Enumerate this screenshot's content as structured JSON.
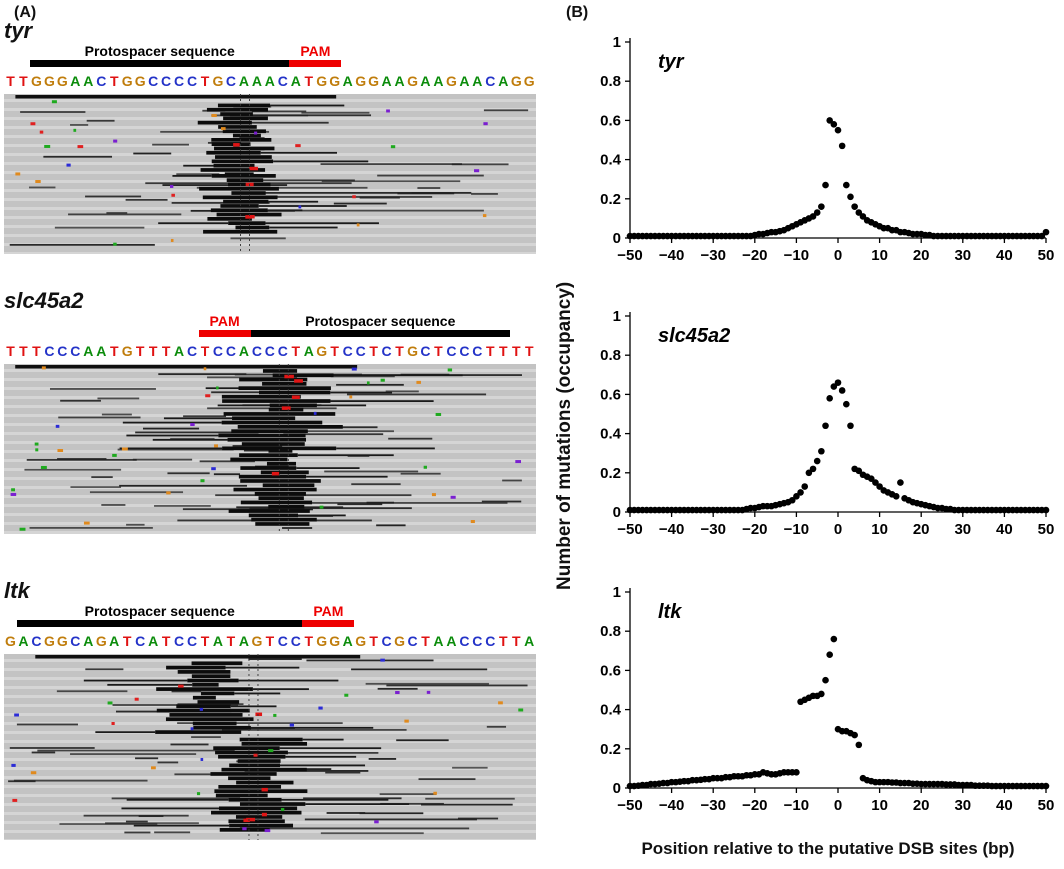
{
  "panelA": {
    "label": "(A)"
  },
  "panelB": {
    "label": "(B)",
    "ylabel": "Number of mutations (occupancy)",
    "xlabel": "Position relative to the putative DSB sites (bp)"
  },
  "base_colors": {
    "A": "#0b8c0b",
    "C": "#2433c8",
    "G": "#c07d0c",
    "T": "#e01212"
  },
  "pam_color": "#ee0000",
  "protospacer_bar_color": "#000000",
  "alignments": [
    {
      "gene": "tyr",
      "protospacer_label": "Protospacer sequence",
      "pam_label": "PAM",
      "sequence": "TTGGGAACTGGCCCCTGCAAACATGGAGGAAGAAGAACAGG",
      "protospacer_span": [
        2,
        21
      ],
      "pam_span": [
        22,
        25
      ],
      "pam_side": "right"
    },
    {
      "gene": "slc45a2",
      "protospacer_label": "Protospacer sequence",
      "pam_label": "PAM",
      "sequence": "TTTCCCAATGTTTACTCCACCCTAGTCCTCTGCTCCCTTTT",
      "pam_span": [
        15,
        18
      ],
      "protospacer_span": [
        19,
        38
      ],
      "pam_side": "left"
    },
    {
      "gene": "ltk",
      "protospacer_label": "Protospacer sequence",
      "pam_label": "PAM",
      "sequence": "GACGGCAGATCATCCTATAGTCCTGGAGTCGCTAACCCTTA",
      "protospacer_span": [
        1,
        22
      ],
      "pam_span": [
        23,
        26
      ],
      "pam_side": "right"
    }
  ],
  "chart_data": [
    {
      "type": "scatter",
      "title": "tyr",
      "xlabel": "Position relative to the putative DSB sites (bp)",
      "ylabel": "Number of mutations (occupancy)",
      "x_start": -50,
      "x_step": 1,
      "xlim": [
        -50,
        50
      ],
      "ylim": [
        0,
        1
      ],
      "xticks": [
        -50,
        -40,
        -30,
        -20,
        -10,
        0,
        10,
        20,
        30,
        40,
        50
      ],
      "yticks": [
        0,
        0.2,
        0.4,
        0.6,
        0.8,
        1
      ],
      "marker": {
        "shape": "circle",
        "color": "#000000"
      },
      "values": [
        0.01,
        0.01,
        0.01,
        0.01,
        0.01,
        0.01,
        0.01,
        0.01,
        0.01,
        0.01,
        0.01,
        0.01,
        0.01,
        0.01,
        0.01,
        0.01,
        0.01,
        0.01,
        0.01,
        0.01,
        0.01,
        0.01,
        0.01,
        0.01,
        0.01,
        0.01,
        0.01,
        0.01,
        0.01,
        0.01,
        0.015,
        0.02,
        0.02,
        0.025,
        0.03,
        0.03,
        0.035,
        0.04,
        0.05,
        0.06,
        0.07,
        0.08,
        0.09,
        0.1,
        0.11,
        0.13,
        0.16,
        0.27,
        0.6,
        0.58,
        0.55,
        0.47,
        0.27,
        0.21,
        0.16,
        0.13,
        0.11,
        0.09,
        0.08,
        0.07,
        0.06,
        0.05,
        0.05,
        0.04,
        0.04,
        0.03,
        0.03,
        0.025,
        0.02,
        0.02,
        0.02,
        0.015,
        0.015,
        0.01,
        0.01,
        0.01,
        0.01,
        0.01,
        0.01,
        0.01,
        0.01,
        0.01,
        0.01,
        0.01,
        0.01,
        0.01,
        0.01,
        0.01,
        0.01,
        0.01,
        0.01,
        0.01,
        0.01,
        0.01,
        0.01,
        0.01,
        0.01,
        0.01,
        0.01,
        0.01,
        0.03
      ]
    },
    {
      "type": "scatter",
      "title": "slc45a2",
      "xlabel": "Position relative to the putative DSB sites (bp)",
      "ylabel": "Number of mutations (occupancy)",
      "x_start": -50,
      "x_step": 1,
      "xlim": [
        -50,
        50
      ],
      "ylim": [
        0,
        1
      ],
      "xticks": [
        -50,
        -40,
        -30,
        -20,
        -10,
        0,
        10,
        20,
        30,
        40,
        50
      ],
      "yticks": [
        0,
        0.2,
        0.4,
        0.6,
        0.8,
        1
      ],
      "marker": {
        "shape": "circle",
        "color": "#000000"
      },
      "values": [
        0.01,
        0.01,
        0.01,
        0.01,
        0.01,
        0.01,
        0.01,
        0.01,
        0.01,
        0.01,
        0.01,
        0.01,
        0.01,
        0.01,
        0.01,
        0.01,
        0.01,
        0.01,
        0.01,
        0.01,
        0.01,
        0.01,
        0.01,
        0.01,
        0.01,
        0.01,
        0.01,
        0.01,
        0.015,
        0.02,
        0.02,
        0.025,
        0.03,
        0.03,
        0.03,
        0.035,
        0.04,
        0.045,
        0.05,
        0.06,
        0.08,
        0.1,
        0.13,
        0.2,
        0.22,
        0.26,
        0.31,
        0.44,
        0.58,
        0.64,
        0.66,
        0.62,
        0.55,
        0.44,
        0.22,
        0.21,
        0.19,
        0.18,
        0.17,
        0.15,
        0.13,
        0.11,
        0.1,
        0.09,
        0.08,
        0.15,
        0.07,
        0.06,
        0.05,
        0.045,
        0.04,
        0.035,
        0.03,
        0.025,
        0.02,
        0.02,
        0.015,
        0.015,
        0.01,
        0.01,
        0.01,
        0.01,
        0.01,
        0.01,
        0.01,
        0.01,
        0.01,
        0.01,
        0.01,
        0.01,
        0.01,
        0.01,
        0.01,
        0.01,
        0.01,
        0.01,
        0.01,
        0.01,
        0.01,
        0.01,
        0.01
      ]
    },
    {
      "type": "scatter",
      "title": "ltk",
      "xlabel": "Position relative to the putative DSB sites (bp)",
      "ylabel": "Number of mutations (occupancy)",
      "x_start": -50,
      "x_step": 1,
      "xlim": [
        -50,
        50
      ],
      "ylim": [
        0,
        1
      ],
      "xticks": [
        -50,
        -40,
        -30,
        -20,
        -10,
        0,
        10,
        20,
        30,
        40,
        50
      ],
      "yticks": [
        0,
        0.2,
        0.4,
        0.6,
        0.8,
        1
      ],
      "marker": {
        "shape": "circle",
        "color": "#000000"
      },
      "values": [
        0.01,
        0.01,
        0.012,
        0.015,
        0.015,
        0.02,
        0.02,
        0.022,
        0.025,
        0.025,
        0.03,
        0.03,
        0.032,
        0.035,
        0.035,
        0.04,
        0.04,
        0.042,
        0.045,
        0.045,
        0.05,
        0.05,
        0.05,
        0.055,
        0.055,
        0.06,
        0.06,
        0.06,
        0.065,
        0.065,
        0.07,
        0.07,
        0.08,
        0.075,
        0.07,
        0.07,
        0.075,
        0.08,
        0.08,
        0.08,
        0.08,
        0.44,
        0.45,
        0.46,
        0.47,
        0.47,
        0.48,
        0.55,
        0.68,
        0.76,
        0.3,
        0.29,
        0.29,
        0.28,
        0.27,
        0.22,
        0.05,
        0.04,
        0.035,
        0.03,
        0.03,
        0.03,
        0.03,
        0.028,
        0.028,
        0.025,
        0.025,
        0.025,
        0.022,
        0.022,
        0.02,
        0.02,
        0.02,
        0.02,
        0.02,
        0.02,
        0.018,
        0.018,
        0.018,
        0.015,
        0.015,
        0.015,
        0.015,
        0.012,
        0.012,
        0.012,
        0.012,
        0.01,
        0.01,
        0.01,
        0.01,
        0.01,
        0.01,
        0.01,
        0.01,
        0.01,
        0.01,
        0.01,
        0.01,
        0.01,
        0.01
      ]
    }
  ]
}
